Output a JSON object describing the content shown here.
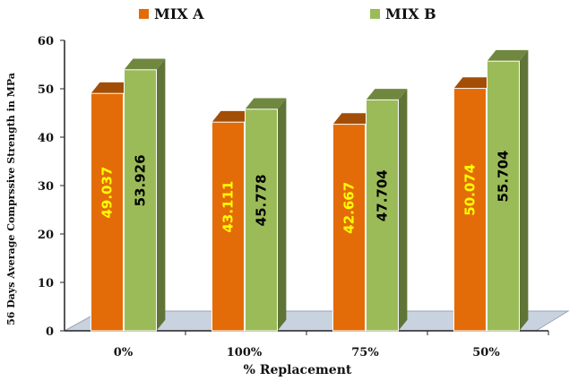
{
  "chart_data": {
    "type": "bar",
    "title": "",
    "xlabel": "% Replacement",
    "ylabel": "56 Days Average Comprssive Strength in MPa",
    "categories": [
      "0%",
      "100%",
      "75%",
      "50%"
    ],
    "series": [
      {
        "name": "MIX A",
        "values": [
          49.037,
          43.111,
          42.667,
          50.074
        ],
        "labels": [
          "49.037",
          "43.111",
          "42.667",
          "50.074"
        ],
        "color": "#E36C09",
        "label_color": "#FFFF00"
      },
      {
        "name": "MIX B",
        "values": [
          53.926,
          45.778,
          47.704,
          55.704
        ],
        "labels": [
          "53.926",
          "45.778",
          "47.704",
          "55.704"
        ],
        "color": "#9BBB59",
        "label_color": "#000000"
      }
    ],
    "ylim": [
      0,
      60
    ],
    "yticks": [
      "0",
      "10",
      "20",
      "30",
      "40",
      "50",
      "60"
    ],
    "legend_position": "top",
    "style": "3d",
    "floor_color": "#C9D3E0"
  }
}
